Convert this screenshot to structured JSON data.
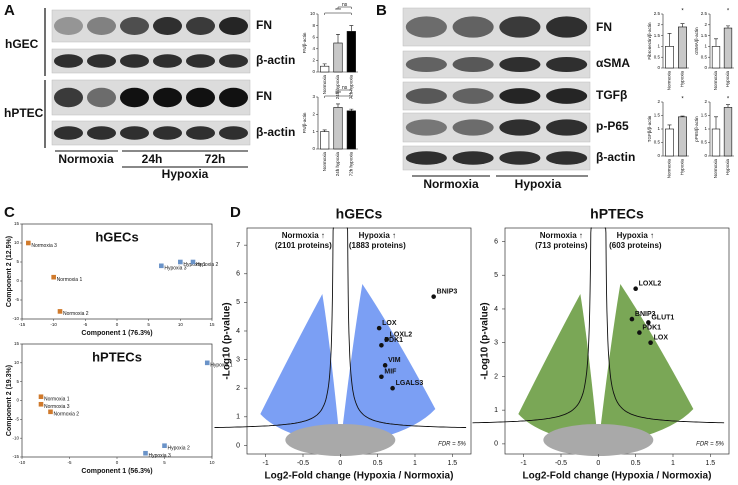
{
  "panel_labels": [
    "A",
    "B",
    "C",
    "D"
  ],
  "blots": {
    "A": {
      "cell_lines": [
        "hGEC",
        "hPTEC"
      ],
      "rows": [
        "FN",
        "β-actin",
        "FN",
        "β-actin"
      ],
      "groups": [
        "Normoxia",
        "24h",
        "72h"
      ],
      "group_title": "Hypoxia"
    },
    "B": {
      "rows": [
        "FN",
        "αSMA",
        "TGFβ",
        "p-P65",
        "β-actin"
      ],
      "groups": [
        "Normoxia",
        "Hypoxia"
      ]
    }
  },
  "chart_data": [
    {
      "type": "bar",
      "ylabel": "FN/β-actin",
      "categories": [
        "Normoxia",
        "24h hypoxia",
        "72h hypoxia"
      ],
      "values": [
        1,
        5,
        7
      ],
      "errors": [
        0.4,
        1.5,
        1
      ],
      "colors": [
        "#ffffff",
        "#c8c8c8",
        "#000000"
      ],
      "ylim": [
        0,
        10
      ],
      "yticks": [
        0,
        2,
        4,
        6,
        8,
        10
      ],
      "annotations": [
        "***",
        "ns"
      ]
    },
    {
      "type": "bar",
      "ylabel": "FN/β-actin",
      "categories": [
        "Normoxia",
        "24h hypoxia",
        "72h hypoxia"
      ],
      "values": [
        1,
        2.4,
        2.2
      ],
      "errors": [
        0.1,
        0.2,
        0.1
      ],
      "colors": [
        "#ffffff",
        "#c8c8c8",
        "#000000"
      ],
      "ylim": [
        0,
        3
      ],
      "yticks": [
        0,
        1,
        2,
        3
      ],
      "annotations": [
        "***",
        "ns"
      ]
    },
    {
      "type": "bar",
      "ylabel": "Fibronectin/β-actin",
      "categories": [
        "Normoxia",
        "Hypoxia"
      ],
      "values": [
        1,
        1.9
      ],
      "errors": [
        0.6,
        0.15
      ],
      "colors": [
        "#ffffff",
        "#c8c8c8"
      ],
      "ylim": [
        0,
        2.5
      ],
      "yticks": [
        0,
        0.5,
        1,
        1.5,
        2,
        2.5
      ],
      "annotations": [
        "*"
      ]
    },
    {
      "type": "bar",
      "ylabel": "αSMA/β-actin",
      "categories": [
        "Normoxia",
        "Hypoxia"
      ],
      "values": [
        1,
        1.85
      ],
      "errors": [
        0.35,
        0.1
      ],
      "colors": [
        "#ffffff",
        "#c8c8c8"
      ],
      "ylim": [
        0,
        2.5
      ],
      "yticks": [
        0,
        0.5,
        1,
        1.5,
        2,
        2.5
      ],
      "annotations": [
        "*"
      ]
    },
    {
      "type": "bar",
      "ylabel": "TGFβ/β-actin",
      "categories": [
        "Normoxia",
        "Hypoxia"
      ],
      "values": [
        1,
        1.45
      ],
      "errors": [
        0.15,
        0.03
      ],
      "colors": [
        "#ffffff",
        "#c8c8c8"
      ],
      "ylim": [
        0,
        2
      ],
      "yticks": [
        0,
        0.5,
        1,
        1.5,
        2
      ],
      "annotations": [
        "*"
      ]
    },
    {
      "type": "bar",
      "ylabel": "pP65/β-actin",
      "categories": [
        "Normoxia",
        "Hypoxia"
      ],
      "values": [
        1,
        1.8
      ],
      "errors": [
        0.45,
        0.1
      ],
      "colors": [
        "#ffffff",
        "#c8c8c8"
      ],
      "ylim": [
        0,
        2
      ],
      "yticks": [
        0,
        0.5,
        1,
        1.5,
        2
      ],
      "annotations": [
        "*"
      ]
    },
    {
      "type": "scatter",
      "title": "hGECs",
      "xlabel": "Component 1 (76.3%)",
      "ylabel": "Component 2 (12.5%)",
      "xlim": [
        -15,
        15
      ],
      "xticks": [
        -15,
        -10,
        -5,
        0,
        5,
        10,
        15
      ],
      "ylim": [
        -10,
        15
      ],
      "yticks": [
        -10,
        -5,
        0,
        5,
        10,
        15
      ],
      "series": [
        {
          "color": "#d07a2c",
          "x": [
            -10,
            -9,
            -14
          ],
          "values": [
            1,
            -8,
            10
          ],
          "point_labels": [
            "Normoxia 1",
            "Normoxia 2",
            "Normoxia 3"
          ]
        },
        {
          "color": "#6a93c8",
          "x": [
            10,
            12,
            7
          ],
          "values": [
            5,
            5,
            4
          ],
          "point_labels": [
            "Hypoxia 1",
            "Hypoxia 2",
            "Hypoxia 3"
          ]
        }
      ]
    },
    {
      "type": "scatter",
      "title": "hPTECs",
      "xlabel": "Component 1 (56.3%)",
      "ylabel": "Component 2 (19.3%)",
      "xlim": [
        -10,
        10
      ],
      "xticks": [
        -10,
        -5,
        0,
        5,
        10
      ],
      "ylim": [
        -15,
        15
      ],
      "yticks": [
        -15,
        -10,
        -5,
        0,
        5,
        10,
        15
      ],
      "series": [
        {
          "color": "#d07a2c",
          "x": [
            -8,
            -7,
            -8
          ],
          "values": [
            1,
            -3,
            -1
          ],
          "point_labels": [
            "Normoxia 1",
            "Normoxia 2",
            "Normoxia 3"
          ]
        },
        {
          "color": "#6a93c8",
          "x": [
            9.5,
            5,
            3
          ],
          "values": [
            10,
            -12,
            -14
          ],
          "point_labels": [
            "Hypoxia 1",
            "Hypoxia 2",
            "Hypoxia 3"
          ]
        }
      ]
    },
    {
      "type": "volcano",
      "title": "hGECs",
      "xlabel": "Log2-Fold change (Hypoxia / Normoxia)",
      "ylabel": "-Log10 (p-value)",
      "xlim": [
        -1.25,
        1.75
      ],
      "xticks": [
        -1,
        -0.5,
        0,
        0.5,
        1,
        1.5
      ],
      "ylim": [
        -0.3,
        7.6
      ],
      "yticks": [
        0,
        1,
        2,
        3,
        4,
        5,
        6,
        7
      ],
      "left_note": [
        "Normoxia ↑",
        "(2101 proteins)"
      ],
      "right_note": [
        "Hypoxia ↑",
        "(1883 proteins)"
      ],
      "fdr_note": "FDR = 5%",
      "cloud_color": "#4f7ff0",
      "series": [
        {
          "color": "#111111",
          "x": [
            1.25,
            0.52,
            0.62,
            0.55,
            0.6,
            0.55,
            0.7
          ],
          "values": [
            5.2,
            4.1,
            3.7,
            3.5,
            2.8,
            2.4,
            2.0
          ],
          "point_labels": [
            "BNIP3",
            "LOX",
            "LOXL2",
            "PDK1",
            "VIM",
            "MIF",
            "LGALS3"
          ]
        }
      ]
    },
    {
      "type": "volcano",
      "title": "hPTECs",
      "xlabel": "Log2-Fold change (Hypoxia / Normoxia)",
      "ylabel": "-Log10 (p-value)",
      "xlim": [
        -1.25,
        1.75
      ],
      "xticks": [
        -1,
        -0.5,
        0,
        0.5,
        1,
        1.5
      ],
      "ylim": [
        -0.3,
        6.4
      ],
      "yticks": [
        0,
        1,
        2,
        3,
        4,
        5,
        6
      ],
      "left_note": [
        "Normoxia ↑",
        "(713 proteins)"
      ],
      "right_note": [
        "Hypoxia ↑",
        "(603 proteins)"
      ],
      "fdr_note": "FDR = 5%",
      "cloud_color": "#4d8a1e",
      "series": [
        {
          "color": "#111111",
          "x": [
            0.5,
            0.45,
            0.67,
            0.55,
            0.7
          ],
          "values": [
            4.6,
            3.7,
            3.6,
            3.3,
            3.0
          ],
          "point_labels": [
            "LOXL2",
            "BNIP3",
            "GLUT1",
            "PDK1",
            "LOX"
          ]
        }
      ]
    }
  ]
}
